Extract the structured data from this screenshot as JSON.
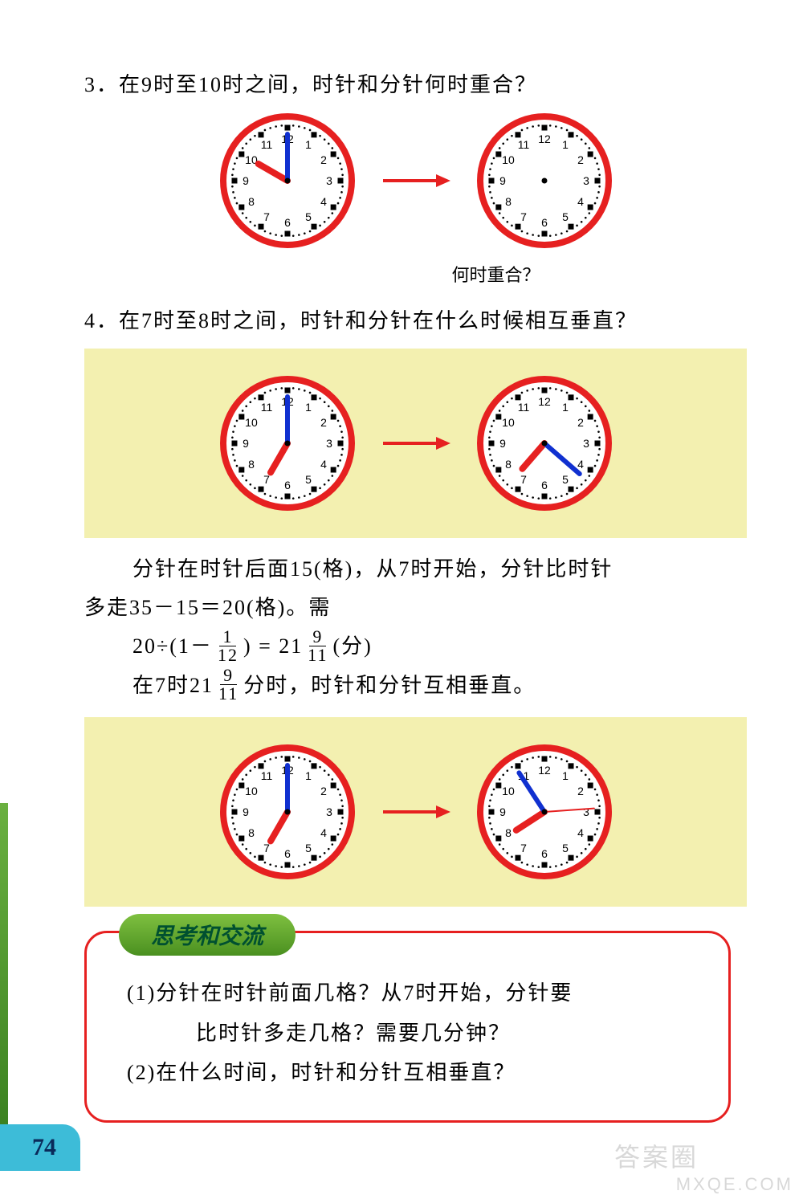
{
  "page_number": "74",
  "watermarks": {
    "w1": "答案圈",
    "w2": "MXQE.COM"
  },
  "q3": {
    "text": "3．在9时至10时之间，时针和分针何时重合？",
    "caption": "何时重合？",
    "clock_left": {
      "face_color": "#ffffff",
      "rim_color": "#e62020",
      "tick_color": "#000000",
      "number_color": "#000000",
      "hour_hand": {
        "angle": 300,
        "length": 42,
        "width": 8,
        "color": "#e62020"
      },
      "minute_hand": {
        "angle": 0,
        "length": 58,
        "width": 6,
        "color": "#1030d0"
      },
      "numbers": [
        "12",
        "1",
        "2",
        "3",
        "4",
        "5",
        "6",
        "7",
        "8",
        "9",
        "10",
        "11"
      ]
    },
    "clock_right": {
      "face_color": "#ffffff",
      "rim_color": "#e62020",
      "tick_color": "#000000",
      "number_color": "#000000",
      "hour_hand": null,
      "minute_hand": null,
      "numbers": [
        "12",
        "1",
        "2",
        "3",
        "4",
        "5",
        "6",
        "7",
        "8",
        "9",
        "10",
        "11"
      ]
    },
    "arrow_color": "#e62020"
  },
  "q4": {
    "text": "4．在7时至8时之间，时针和分针在什么时候相互垂直？",
    "box1": {
      "bg": "#f3f0b0",
      "clock_left": {
        "face_color": "#ffffff",
        "rim_color": "#e62020",
        "tick_color": "#000000",
        "number_color": "#000000",
        "hour_hand": {
          "angle": 210,
          "length": 42,
          "width": 8,
          "color": "#e62020"
        },
        "minute_hand": {
          "angle": 0,
          "length": 58,
          "width": 6,
          "color": "#1030d0"
        },
        "numbers": [
          "12",
          "1",
          "2",
          "3",
          "4",
          "5",
          "6",
          "7",
          "8",
          "9",
          "10",
          "11"
        ]
      },
      "clock_right": {
        "face_color": "#ffffff",
        "rim_color": "#e62020",
        "tick_color": "#000000",
        "number_color": "#000000",
        "hour_hand": {
          "angle": 221,
          "length": 42,
          "width": 8,
          "color": "#e62020"
        },
        "minute_hand": {
          "angle": 131,
          "length": 58,
          "width": 6,
          "color": "#1030d0"
        },
        "numbers": [
          "12",
          "1",
          "2",
          "3",
          "4",
          "5",
          "6",
          "7",
          "8",
          "9",
          "10",
          "11"
        ]
      },
      "arrow_color": "#e62020"
    },
    "solution": {
      "l1a": "分针在时针后面15(格)，从7时开始，分针比时针",
      "l2": "多走35－15＝20(格)。需",
      "calc_pre": "20÷(1－",
      "calc_f1_num": "1",
      "calc_f1_den": "12",
      "calc_mid1": ") = 21",
      "calc_f2_num": "9",
      "calc_f2_den": "11",
      "calc_post": "(分)",
      "l4_pre": "在7时21",
      "l4_f_num": "9",
      "l4_f_den": "11",
      "l4_post": "分时，时针和分针互相垂直。"
    },
    "box2": {
      "bg": "#f3f0b0",
      "clock_left": {
        "face_color": "#ffffff",
        "rim_color": "#e62020",
        "tick_color": "#000000",
        "number_color": "#000000",
        "hour_hand": {
          "angle": 210,
          "length": 42,
          "width": 8,
          "color": "#e62020"
        },
        "minute_hand": {
          "angle": 0,
          "length": 58,
          "width": 6,
          "color": "#1030d0"
        },
        "numbers": [
          "12",
          "1",
          "2",
          "3",
          "4",
          "5",
          "6",
          "7",
          "8",
          "9",
          "10",
          "11"
        ]
      },
      "clock_right": {
        "face_color": "#ffffff",
        "rim_color": "#e62020",
        "tick_color": "#000000",
        "number_color": "#000000",
        "hour_hand": {
          "angle": 237,
          "length": 42,
          "width": 8,
          "color": "#e62020"
        },
        "minute_hand": {
          "angle": 327,
          "length": 58,
          "width": 6,
          "color": "#1030d0"
        },
        "second_hand": {
          "angle": 86,
          "length": 62,
          "width": 2,
          "color": "#e62020"
        },
        "numbers": [
          "12",
          "1",
          "2",
          "3",
          "4",
          "5",
          "6",
          "7",
          "8",
          "9",
          "10",
          "11"
        ]
      },
      "arrow_color": "#e62020"
    }
  },
  "think": {
    "badge": "思考和交流",
    "l1": "(1)分针在时针前面几格？从7时开始，分针要",
    "l1b": "比时针多走几格？需要几分钟？",
    "l2": "(2)在什么时间，时针和分针互相垂直？",
    "border_color": "#e62020",
    "badge_bg": "#5aa430"
  },
  "clock_radius": 80
}
